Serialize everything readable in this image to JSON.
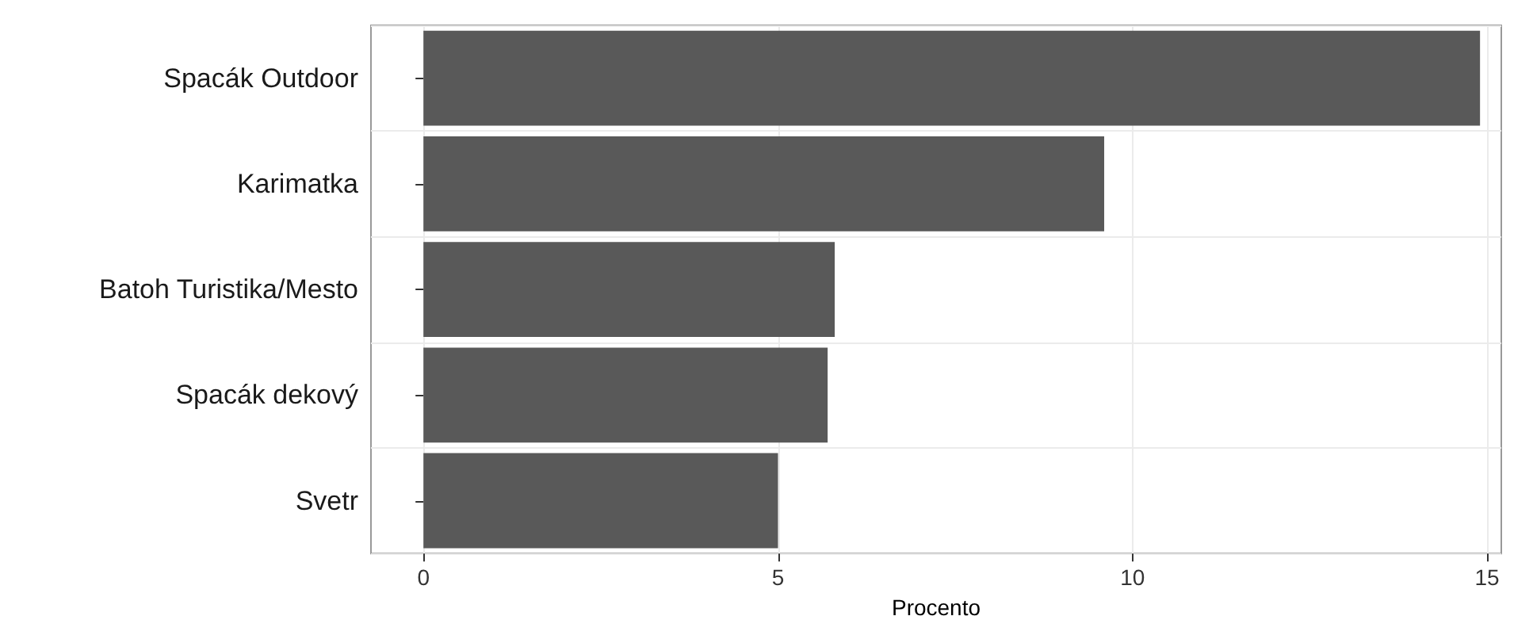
{
  "chart_data": {
    "type": "bar",
    "orientation": "horizontal",
    "xlabel": "Procento",
    "categories": [
      "Spacák Outdoor",
      "Karimatka",
      "Batoh Turistika/Mesto",
      "Spacák dekový",
      "Svetr"
    ],
    "values": [
      14.9,
      9.6,
      5.8,
      5.7,
      5.0
    ],
    "color": "#595959",
    "xlim": [
      -0.74,
      15.2
    ],
    "xticks": [
      0,
      5,
      10,
      15
    ],
    "grid": true
  }
}
